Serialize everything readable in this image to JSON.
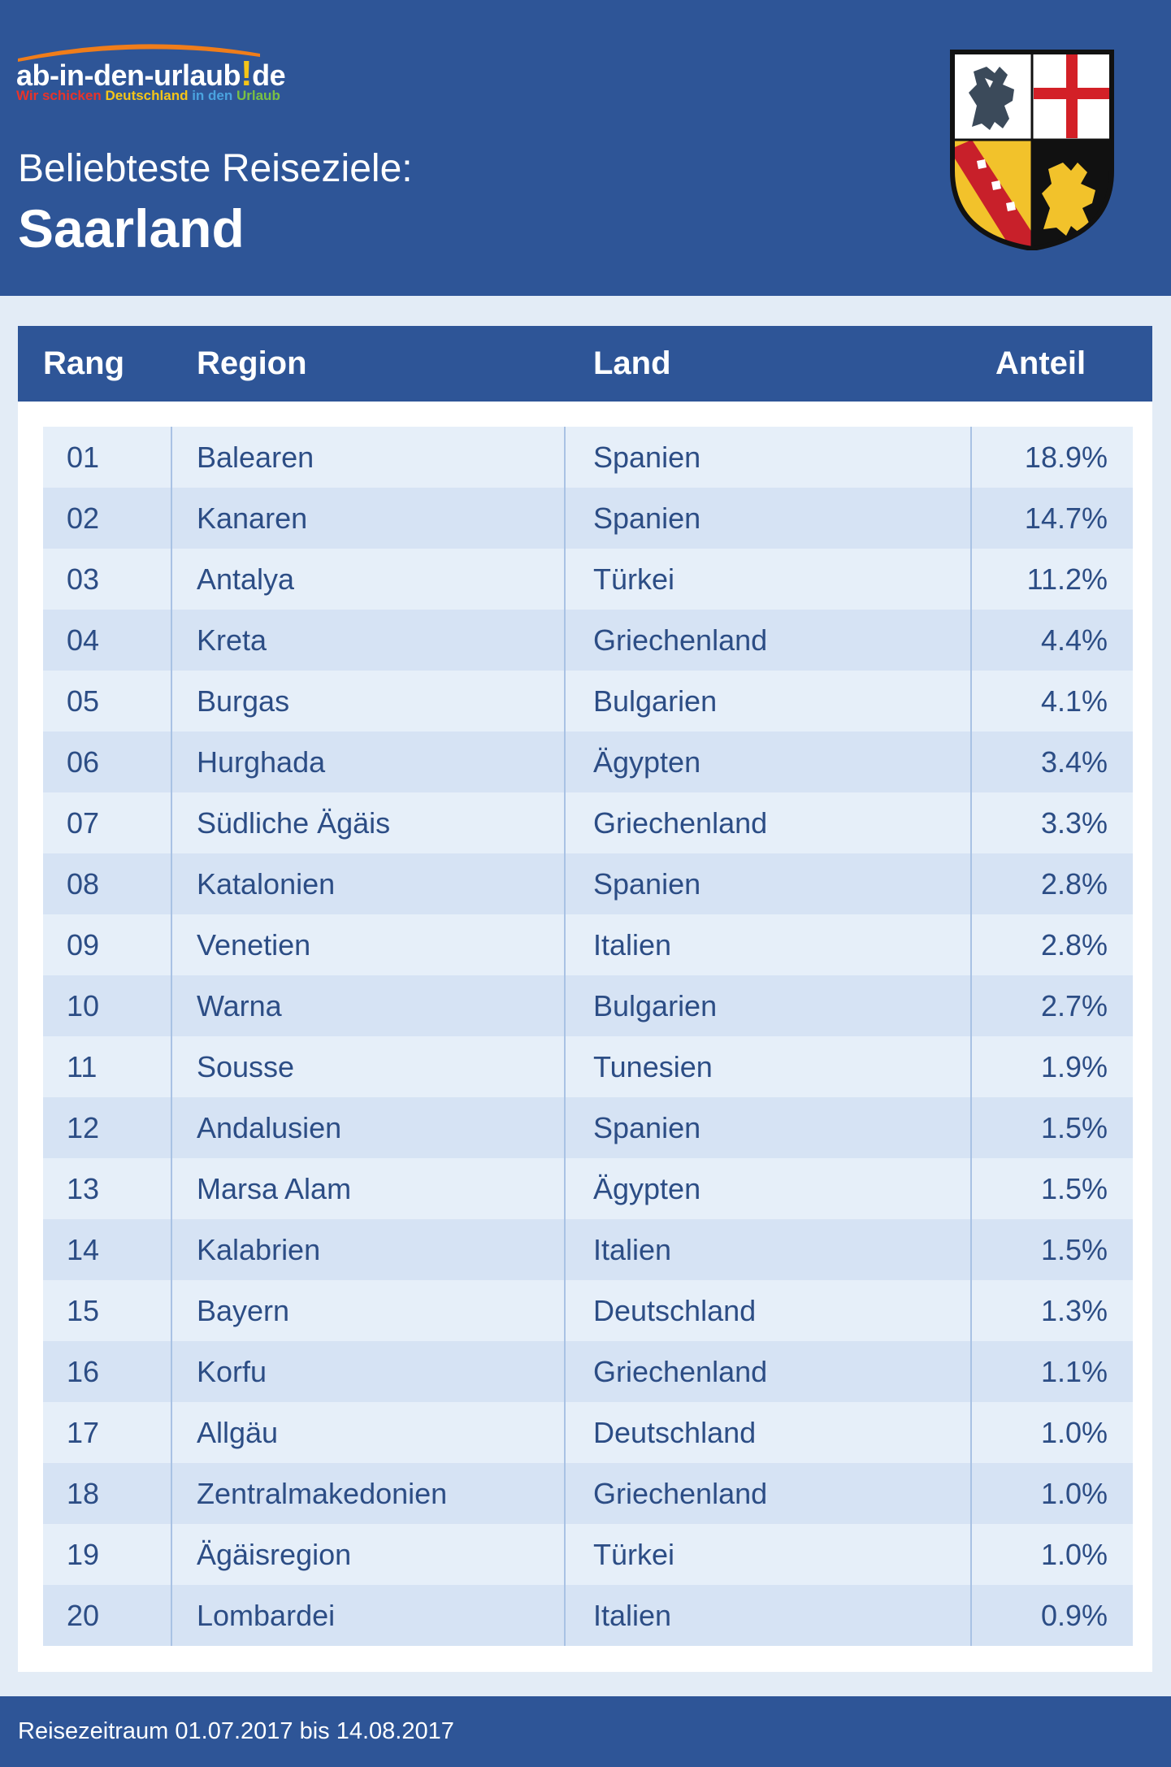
{
  "brand": {
    "name": "ab-in-den-urlaub",
    "exclamation": "!",
    "tld": "de",
    "tagline": [
      {
        "text": "Wir schicken ",
        "color": "#e8332a"
      },
      {
        "text": "Deutschland ",
        "color": "#f5c518"
      },
      {
        "text": "in den ",
        "color": "#4aa3df"
      },
      {
        "text": "Urlaub",
        "color": "#7ac143"
      }
    ],
    "arc_color": "#f07d1a"
  },
  "header": {
    "subtitle": "Beliebteste Reiseziele:",
    "title": "Saarland",
    "background": "#2e5597",
    "crest_icon": "saarland-coat-of-arms-icon"
  },
  "table": {
    "columns": {
      "rank": "Rang",
      "region": "Region",
      "land": "Land",
      "share": "Anteil"
    },
    "rows": [
      {
        "rank": "01",
        "region": "Balearen",
        "land": "Spanien",
        "share": "18.9%"
      },
      {
        "rank": "02",
        "region": "Kanaren",
        "land": "Spanien",
        "share": "14.7%"
      },
      {
        "rank": "03",
        "region": "Antalya",
        "land": "Türkei",
        "share": "11.2%"
      },
      {
        "rank": "04",
        "region": "Kreta",
        "land": "Griechenland",
        "share": "4.4%"
      },
      {
        "rank": "05",
        "region": "Burgas",
        "land": "Bulgarien",
        "share": "4.1%"
      },
      {
        "rank": "06",
        "region": "Hurghada",
        "land": "Ägypten",
        "share": "3.4%"
      },
      {
        "rank": "07",
        "region": "Südliche Ägäis",
        "land": "Griechenland",
        "share": "3.3%"
      },
      {
        "rank": "08",
        "region": "Katalonien",
        "land": "Spanien",
        "share": "2.8%"
      },
      {
        "rank": "09",
        "region": "Venetien",
        "land": "Italien",
        "share": "2.8%"
      },
      {
        "rank": "10",
        "region": "Warna",
        "land": "Bulgarien",
        "share": "2.7%"
      },
      {
        "rank": "11",
        "region": "Sousse",
        "land": "Tunesien",
        "share": "1.9%"
      },
      {
        "rank": "12",
        "region": "Andalusien",
        "land": "Spanien",
        "share": "1.5%"
      },
      {
        "rank": "13",
        "region": "Marsa Alam",
        "land": "Ägypten",
        "share": "1.5%"
      },
      {
        "rank": "14",
        "region": "Kalabrien",
        "land": "Italien",
        "share": "1.5%"
      },
      {
        "rank": "15",
        "region": "Bayern",
        "land": "Deutschland",
        "share": "1.3%"
      },
      {
        "rank": "16",
        "region": "Korfu",
        "land": "Griechenland",
        "share": "1.1%"
      },
      {
        "rank": "17",
        "region": "Allgäu",
        "land": "Deutschland",
        "share": "1.0%"
      },
      {
        "rank": "18",
        "region": "Zentralmakedonien",
        "land": "Griechenland",
        "share": "1.0%"
      },
      {
        "rank": "19",
        "region": "Ägäisregion",
        "land": "Türkei",
        "share": "1.0%"
      },
      {
        "rank": "20",
        "region": "Lombardei",
        "land": "Italien",
        "share": "0.9%"
      }
    ]
  },
  "footer": {
    "text": "Reisezeitraum 01.07.2017 bis 14.08.2017"
  }
}
